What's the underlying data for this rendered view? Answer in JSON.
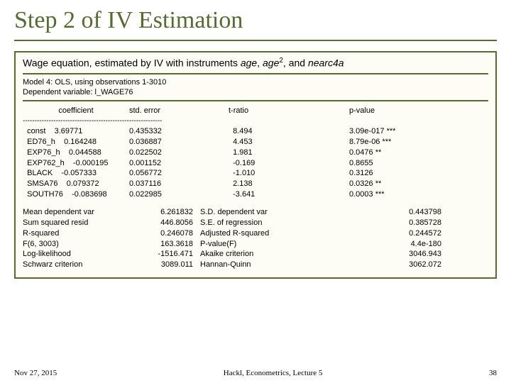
{
  "title": "Step 2 of IV Estimation",
  "caption_parts": {
    "p1": "Wage equation, estimated by IV with instruments ",
    "i1": "age",
    "p2": ", ",
    "i2": "age",
    "sup": "2",
    "p3": ", and ",
    "i3": "nearc4a"
  },
  "model": {
    "line1": "Model 4: OLS, using observations 1-3010",
    "line2": "Dependent variable: l_WAGE76"
  },
  "headers": {
    "h1": "coefficient",
    "h2": "std. error",
    "h3": "t-ratio",
    "h4": "p-value"
  },
  "sep": "-----------------------------------------------------------",
  "coefs": [
    {
      "name": "const",
      "coef": "3.69771",
      "se": "0.435332",
      "t": "8.494",
      "p": "3.09e-017 ***"
    },
    {
      "name": "ED76_h",
      "coef": "0.164248",
      "se": "0.036887",
      "t": "4.453",
      "p": "8.79e-06  ***"
    },
    {
      "name": "EXP76_h",
      "coef": "0.044588",
      "se": "0.022502",
      "t": "1.981",
      "p": "0.0476  **"
    },
    {
      "name": "EXP762_h",
      "coef": "-0.000195",
      "se": "0.001152",
      "t": "-0.169",
      "p": "0.8655"
    },
    {
      "name": "BLACK",
      "coef": "-0.057333",
      "se": "0.056772",
      "t": "-1.010",
      "p": "0.3126"
    },
    {
      "name": "SMSA76",
      "coef": "0.079372",
      "se": "0.037116",
      "t": "2.138",
      "p": "0.0326  **"
    },
    {
      "name": "SOUTH76",
      "coef": "-0.083698",
      "se": "0.022985",
      "t": "-3.641",
      "p": "0.0003  ***"
    }
  ],
  "stats": [
    {
      "l": "Mean dependent var",
      "lv": "6.261832",
      "r": "S.D. dependent var",
      "rv": "0.443798"
    },
    {
      "l": "Sum squared resid",
      "lv": "446.8056",
      "r": "S.E. of regression",
      "rv": "0.385728"
    },
    {
      "l": "R-squared",
      "lv": "0.246078",
      "r": "Adjusted R-squared",
      "rv": "0.244572"
    },
    {
      "l": "F(6, 3003)",
      "lv": "163.3618",
      "r": "P-value(F)",
      "rv": "4.4e-180"
    },
    {
      "l": "Log-likelihood",
      "lv": "-1516.471",
      "r": "Akaike criterion",
      "rv": "3046.943"
    },
    {
      "l": "Schwarz criterion",
      "lv": "3089.011",
      "r": "Hannan-Quinn",
      "rv": "3062.072"
    }
  ],
  "footer": {
    "date": "Nov 27, 2015",
    "center": "Hackl, Econometrics, Lecture 5",
    "page": "38"
  }
}
